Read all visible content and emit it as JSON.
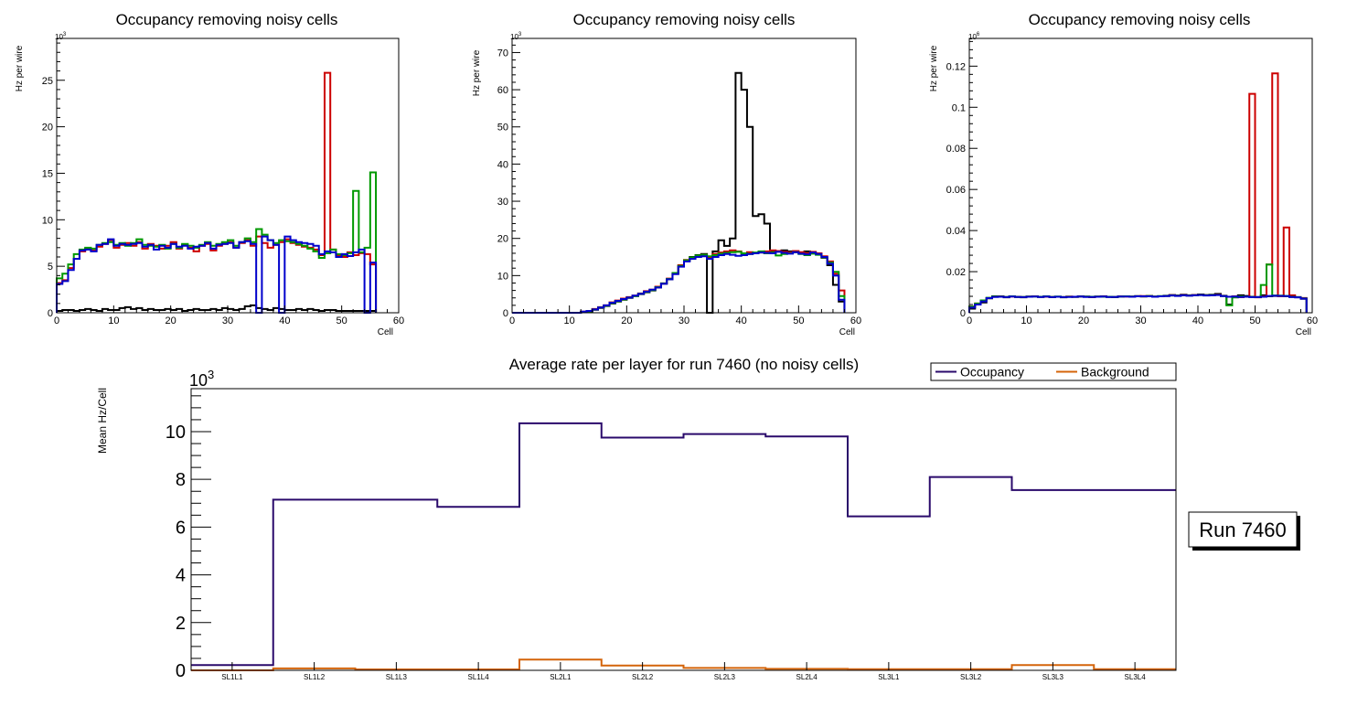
{
  "colors": {
    "black": "#000000",
    "red": "#cc0000",
    "green": "#009900",
    "blue": "#0000cc",
    "occupancy": "#2a0a6b",
    "background": "#d4640a"
  },
  "chart_data": [
    {
      "type": "line",
      "title": "Occupancy removing noisy cells",
      "xlabel": "Cell",
      "ylabel": "Hz per wire",
      "exponent": "10",
      "exponent_power": "3",
      "xlim": [
        0,
        60
      ],
      "ylim": [
        0,
        29.5
      ],
      "xticks": [
        0,
        10,
        20,
        30,
        40,
        50,
        60
      ],
      "yticks": [
        0,
        5,
        10,
        15,
        20,
        25
      ],
      "series": [
        {
          "name": "black",
          "color": "#000000",
          "values": [
            0.2,
            0.3,
            0.3,
            0.2,
            0.3,
            0.4,
            0.3,
            0.2,
            0.4,
            0.3,
            0.3,
            0.5,
            0.6,
            0.4,
            0.5,
            0.3,
            0.4,
            0.3,
            0.3,
            0.4,
            0.3,
            0.4,
            0.2,
            0.3,
            0.4,
            0.3,
            0.3,
            0.4,
            0.3,
            0.5,
            0.4,
            0.3,
            0.4,
            0.7,
            0.8,
            0.5,
            0.4,
            0.3,
            0.5,
            0.4,
            0.3,
            0.3,
            0.4,
            0.3,
            0.4,
            0.3,
            0.2,
            0.3,
            0.3,
            0.2,
            0.2,
            0.2,
            0.2,
            0.2,
            0.2,
            0.2
          ]
        },
        {
          "name": "red",
          "color": "#cc0000",
          "values": [
            3.2,
            3.5,
            4.8,
            5.8,
            6.6,
            6.9,
            6.7,
            7.1,
            7.4,
            7.8,
            7.0,
            7.3,
            7.5,
            7.2,
            7.6,
            6.9,
            7.4,
            7.2,
            6.9,
            7.2,
            7.6,
            6.9,
            7.3,
            7.0,
            6.6,
            7.2,
            7.4,
            6.7,
            7.2,
            7.4,
            7.6,
            7.0,
            7.5,
            7.8,
            7.2,
            8.2,
            7.5,
            7.0,
            7.3,
            7.6,
            7.9,
            7.5,
            7.3,
            7.1,
            7.0,
            6.8,
            6.2,
            25.8,
            6.8,
            6.2,
            6.0,
            6.5,
            6.2,
            6.4,
            6.3,
            5.2
          ]
        },
        {
          "name": "green",
          "color": "#009900",
          "values": [
            3.7,
            4.2,
            5.2,
            6.3,
            6.8,
            7.0,
            6.9,
            7.3,
            7.5,
            7.6,
            7.3,
            7.5,
            7.2,
            7.5,
            7.9,
            7.3,
            7.2,
            7.1,
            7.3,
            6.9,
            7.4,
            7.0,
            7.4,
            7.2,
            7.0,
            7.3,
            7.6,
            7.2,
            7.4,
            7.6,
            7.8,
            7.2,
            7.6,
            8.0,
            7.6,
            9.0,
            8.4,
            7.8,
            7.5,
            7.8,
            7.7,
            7.6,
            7.4,
            7.2,
            6.9,
            6.6,
            5.9,
            6.4,
            6.8,
            6.3,
            6.2,
            6.4,
            13.1,
            6.5,
            7.0,
            15.1
          ]
        },
        {
          "name": "blue",
          "color": "#0000cc",
          "values": [
            3.1,
            3.4,
            4.6,
            5.8,
            6.7,
            6.8,
            6.6,
            7.3,
            7.4,
            7.9,
            7.2,
            7.4,
            7.3,
            7.4,
            7.5,
            7.1,
            7.3,
            6.8,
            7.2,
            7.0,
            7.4,
            7.1,
            7.2,
            6.9,
            7.1,
            7.2,
            7.5,
            6.9,
            7.3,
            7.4,
            7.5,
            7.0,
            7.6,
            7.7,
            7.4,
            0,
            8.2,
            7.8,
            7.3,
            0,
            8.2,
            7.8,
            7.6,
            7.5,
            7.4,
            7.2,
            6.3,
            6.6,
            6.5,
            6.0,
            6.3,
            6.1,
            6.5,
            6.8,
            0,
            5.4
          ]
        }
      ]
    },
    {
      "type": "line",
      "title": "Occupancy removing noisy cells",
      "xlabel": "Cell",
      "ylabel": "Hz per wire",
      "exponent": "10",
      "exponent_power": "3",
      "xlim": [
        0,
        60
      ],
      "ylim": [
        0,
        73.8
      ],
      "xticks": [
        0,
        10,
        20,
        30,
        40,
        50,
        60
      ],
      "yticks": [
        0,
        10,
        20,
        30,
        40,
        50,
        60,
        70
      ],
      "series": [
        {
          "name": "black",
          "color": "#000000",
          "values": [
            0,
            0,
            0,
            0,
            0,
            0,
            0,
            0,
            0,
            0,
            0,
            0,
            0.2,
            0.4,
            0.8,
            1.3,
            1.8,
            2.5,
            3.0,
            3.5,
            4.0,
            4.5,
            5.0,
            5.5,
            6.0,
            6.8,
            7.8,
            9.0,
            10.5,
            12.5,
            14.0,
            15.0,
            15.5,
            15.8,
            0,
            16.5,
            19.5,
            18.0,
            20.0,
            64.5,
            60.0,
            50.0,
            26.0,
            26.5,
            24.0,
            16.5,
            16.5,
            16.8,
            16.5,
            16.3,
            16.0,
            16.5,
            16.2,
            15.8,
            14.8,
            12.8,
            7.5,
            3.0
          ]
        },
        {
          "name": "red",
          "color": "#cc0000",
          "values": [
            0,
            0,
            0,
            0,
            0,
            0,
            0,
            0,
            0,
            0,
            0,
            0,
            0.3,
            0.5,
            1.0,
            1.5,
            2.0,
            2.8,
            3.3,
            3.8,
            4.2,
            4.6,
            5.2,
            5.8,
            6.2,
            7.0,
            7.9,
            9.2,
            10.6,
            12.8,
            14.2,
            14.8,
            15.3,
            15.6,
            15.0,
            15.8,
            16.2,
            16.5,
            16.8,
            16.5,
            16.0,
            16.3,
            16.0,
            16.2,
            16.5,
            16.8,
            16.6,
            16.4,
            16.2,
            16.6,
            16.3,
            16.0,
            16.4,
            16.0,
            15.2,
            13.8,
            10.5,
            6.0
          ]
        },
        {
          "name": "green",
          "color": "#009900",
          "values": [
            0,
            0,
            0,
            0,
            0,
            0,
            0,
            0,
            0,
            0,
            0,
            0,
            0.2,
            0.4,
            0.9,
            1.4,
            1.9,
            2.6,
            3.1,
            3.6,
            4.1,
            4.5,
            5.1,
            5.6,
            6.1,
            6.9,
            7.9,
            9.1,
            10.7,
            12.6,
            14.1,
            14.9,
            15.4,
            15.6,
            15.2,
            15.5,
            15.9,
            16.1,
            16.3,
            16.4,
            16.0,
            15.8,
            16.2,
            16.5,
            16.0,
            16.2,
            15.4,
            15.8,
            16.0,
            16.3,
            15.8,
            15.5,
            15.9,
            15.6,
            14.9,
            13.5,
            11.0,
            4.5
          ]
        },
        {
          "name": "blue",
          "color": "#0000cc",
          "values": [
            0,
            0,
            0,
            0,
            0,
            0,
            0,
            0,
            0,
            0,
            0,
            0,
            0.3,
            0.5,
            0.9,
            1.4,
            2.0,
            2.7,
            3.2,
            3.7,
            4.1,
            4.6,
            5.1,
            5.7,
            6.2,
            6.8,
            7.8,
            9.0,
            10.4,
            12.4,
            13.8,
            14.5,
            15.0,
            15.2,
            14.5,
            15.0,
            15.5,
            15.8,
            15.6,
            15.3,
            15.5,
            15.8,
            16.0,
            16.2,
            16.1,
            16.0,
            16.4,
            16.1,
            15.9,
            16.3,
            15.9,
            15.7,
            16.2,
            15.8,
            15.0,
            13.2,
            10.0,
            3.5
          ]
        }
      ]
    },
    {
      "type": "line",
      "title": "Occupancy removing noisy cells",
      "xlabel": "Cell",
      "ylabel": "Hz per wire",
      "exponent": "10",
      "exponent_power": "6",
      "xlim": [
        0,
        60
      ],
      "ylim": [
        0,
        0.1335
      ],
      "xticks": [
        0,
        10,
        20,
        30,
        40,
        50,
        60
      ],
      "yticks": [
        0,
        0.02,
        0.04,
        0.06,
        0.08,
        0.1,
        0.12
      ],
      "ytick_labels": [
        "0",
        "0.02",
        "0.04",
        "0.06",
        "0.08",
        "0.1",
        "0.12"
      ],
      "series": [
        {
          "name": "black",
          "color": "#000000",
          "values": [
            0.002,
            0.004,
            0.005,
            0.007,
            0.008,
            0.008,
            0.0075,
            0.008,
            0.0078,
            0.0075,
            0.0078,
            0.008,
            0.0077,
            0.0079,
            0.0076,
            0.0078,
            0.0075,
            0.0078,
            0.0077,
            0.008,
            0.0079,
            0.0076,
            0.0078,
            0.008,
            0.0077,
            0.0076,
            0.0079,
            0.008,
            0.0078,
            0.0081,
            0.0079,
            0.0082,
            0.0078,
            0.008,
            0.0083,
            0.0086,
            0.0084,
            0.0088,
            0.0085,
            0.0087,
            0.0089,
            0.0086,
            0.0088,
            0.0092,
            0.0083,
            0.004,
            0.0075,
            0.0085,
            0.0082,
            0.0078,
            0.0076,
            0.0085,
            0.008,
            0.0082,
            0.0083,
            0.008,
            0.0077,
            0.0075,
            0.0068
          ]
        },
        {
          "name": "red",
          "color": "#cc0000",
          "values": [
            0.003,
            0.0045,
            0.006,
            0.0072,
            0.0078,
            0.0079,
            0.0076,
            0.0079,
            0.0077,
            0.0076,
            0.0079,
            0.008,
            0.0078,
            0.0079,
            0.0077,
            0.0078,
            0.0076,
            0.0079,
            0.0078,
            0.0079,
            0.0078,
            0.0077,
            0.0079,
            0.0079,
            0.0078,
            0.0077,
            0.008,
            0.0079,
            0.0079,
            0.008,
            0.0081,
            0.0081,
            0.0079,
            0.008,
            0.0082,
            0.0085,
            0.0083,
            0.0086,
            0.0084,
            0.0086,
            0.0087,
            0.0085,
            0.0086,
            0.0088,
            0.0082,
            0.0078,
            0.008,
            0.0076,
            0.0078,
            0.1065,
            0.0075,
            0.008,
            0.0235,
            0.1165,
            0.008,
            0.0415,
            0.0085,
            0.0076,
            0.0072
          ]
        },
        {
          "name": "green",
          "color": "#009900",
          "values": [
            0.003,
            0.0045,
            0.006,
            0.0073,
            0.0079,
            0.0079,
            0.0077,
            0.008,
            0.0077,
            0.0077,
            0.0079,
            0.0079,
            0.0078,
            0.008,
            0.0077,
            0.0079,
            0.0076,
            0.0078,
            0.0078,
            0.0079,
            0.0078,
            0.0078,
            0.0079,
            0.0078,
            0.0078,
            0.0077,
            0.0079,
            0.008,
            0.0079,
            0.008,
            0.008,
            0.0081,
            0.0079,
            0.0081,
            0.0082,
            0.0084,
            0.0083,
            0.0085,
            0.0084,
            0.0085,
            0.0086,
            0.0085,
            0.0086,
            0.0087,
            0.0081,
            0.0036,
            0.0075,
            0.008,
            0.0078,
            0.0077,
            0.0076,
            0.0135,
            0.0235,
            0.0084,
            0.0083,
            0.0082,
            0.0078,
            0.0076,
            0.007
          ]
        },
        {
          "name": "blue",
          "color": "#0000cc",
          "values": [
            0.0025,
            0.004,
            0.0055,
            0.0071,
            0.0077,
            0.0078,
            0.0076,
            0.0079,
            0.0077,
            0.0076,
            0.0078,
            0.0079,
            0.0077,
            0.0079,
            0.0076,
            0.0078,
            0.0076,
            0.0077,
            0.0078,
            0.0079,
            0.0077,
            0.0077,
            0.0078,
            0.0079,
            0.0077,
            0.0077,
            0.0079,
            0.0079,
            0.0078,
            0.008,
            0.008,
            0.008,
            0.0078,
            0.008,
            0.0081,
            0.0084,
            0.0082,
            0.0085,
            0.0083,
            0.0085,
            0.0086,
            0.0084,
            0.0085,
            0.0086,
            0.0081,
            0.0078,
            0.0079,
            0.0077,
            0.0078,
            0.0076,
            0.0076,
            0.0078,
            0.0082,
            0.0083,
            0.0082,
            0.0081,
            0.0077,
            0.0075,
            0.0069
          ]
        }
      ]
    },
    {
      "type": "line",
      "title": "Average rate per layer for run 7460 (no noisy cells)",
      "xlabel": "",
      "ylabel": "Mean Hz/Cell",
      "exponent": "10",
      "exponent_power": "3",
      "categories": [
        "SL1L1",
        "SL1L2",
        "SL1L3",
        "SL1L4",
        "SL2L1",
        "SL2L2",
        "SL2L3",
        "SL2L4",
        "SL3L1",
        "SL3L2",
        "SL3L3",
        "SL3L4"
      ],
      "ylim": [
        0,
        11.8
      ],
      "yticks": [
        0,
        2,
        4,
        6,
        8,
        10
      ],
      "legend": [
        "Occupancy",
        "Background"
      ],
      "legend_position": "top-right",
      "annotation": "Run 7460",
      "series": [
        {
          "name": "Occupancy",
          "color": "#2a0a6b",
          "values": [
            0.22,
            7.15,
            7.15,
            6.85,
            10.35,
            9.75,
            9.9,
            9.8,
            6.45,
            8.1,
            7.55,
            7.55
          ]
        },
        {
          "name": "Background",
          "color": "#d4640a",
          "values": [
            0.0,
            0.08,
            0.04,
            0.04,
            0.45,
            0.2,
            0.1,
            0.06,
            0.05,
            0.05,
            0.22,
            0.05
          ]
        }
      ]
    }
  ]
}
